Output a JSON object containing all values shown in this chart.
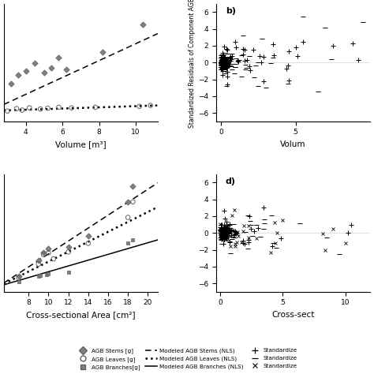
{
  "panel_a": {
    "xlabel": "Volume [m³]",
    "xlim": [
      2.8,
      11.2
    ],
    "ylim": [
      -30,
      600
    ],
    "xticks": [
      4,
      6,
      8,
      10
    ],
    "stems_x": [
      3.2,
      3.6,
      4.0,
      4.5,
      5.0,
      5.4,
      5.8,
      6.2,
      8.2,
      10.4
    ],
    "stems_y": [
      170,
      220,
      240,
      280,
      230,
      255,
      310,
      250,
      340,
      490
    ],
    "leaves_x": [
      3.0,
      3.5,
      3.8,
      4.2,
      4.8,
      5.2,
      5.8,
      6.5,
      7.8,
      10.2,
      10.8
    ],
    "leaves_y": [
      25,
      38,
      30,
      42,
      36,
      40,
      45,
      42,
      45,
      50,
      55
    ],
    "stems_line": [
      [
        2.8,
        11.2
      ],
      [
        60,
        440
      ]
    ],
    "leaves_line": [
      [
        2.8,
        11.2
      ],
      [
        28,
        55
      ]
    ]
  },
  "panel_b": {
    "title": "b)",
    "xlabel": "Volum",
    "ylabel": "Standardized Residuals of Component AGB",
    "xlim": [
      -0.3,
      10
    ],
    "ylim": [
      -7,
      7
    ],
    "xticks": [
      0,
      5
    ],
    "yticks": [
      -6,
      -4,
      -2,
      0,
      2,
      4,
      6
    ]
  },
  "panel_c": {
    "xlabel": "Cross-sectional Area [cm²]",
    "xlim": [
      5.5,
      21
    ],
    "ylim": [
      -30,
      650
    ],
    "xticks": [
      8,
      10,
      12,
      14,
      16,
      18,
      20
    ],
    "stems_x": [
      7.0,
      9.0,
      9.5,
      10.0,
      12.0,
      14.0,
      18.0,
      18.5
    ],
    "stems_y": [
      60,
      150,
      195,
      220,
      230,
      295,
      490,
      580
    ],
    "leaves_x": [
      7.0,
      9.0,
      9.5,
      10.0,
      10.5,
      12.0,
      14.0,
      18.0,
      18.5
    ],
    "leaves_y": [
      50,
      130,
      185,
      195,
      160,
      200,
      250,
      400,
      490
    ],
    "branch_x": [
      7.0,
      9.0,
      9.2,
      9.8,
      10.0,
      12.0,
      18.0,
      18.5
    ],
    "branch_y": [
      28,
      60,
      65,
      70,
      72,
      85,
      250,
      270
    ],
    "stems_line": [
      [
        5.5,
        21
      ],
      [
        20,
        600
      ]
    ],
    "leaves_line": [
      [
        5.5,
        21
      ],
      [
        15,
        460
      ]
    ],
    "branch_line": [
      [
        5.5,
        21
      ],
      [
        10,
        270
      ]
    ]
  },
  "panel_d": {
    "title": "d)",
    "xlabel": "Cross-sect",
    "ylabel": "Standardized Residuals of Component AGB",
    "xlim": [
      -0.3,
      12
    ],
    "ylim": [
      -7,
      7
    ],
    "xticks": [
      0,
      5,
      10
    ],
    "yticks": [
      -6,
      -4,
      -2,
      0,
      2,
      4,
      6
    ]
  },
  "legend": {
    "stems_label": "AGB Stems [g]",
    "leaves_label": "AGB Leaves [g]",
    "branch_label": "AGB Branches[g]",
    "line_stems_label": "Modeled AGB Stems (NLS)",
    "line_leaves_label": "Modeled AGB Leaves (NLS)",
    "line_branch_label": "Modeled AGB Branches (NLS)",
    "plus_label": "Standardize",
    "minus_label": "Standardize",
    "cross_label": "Standardize"
  }
}
